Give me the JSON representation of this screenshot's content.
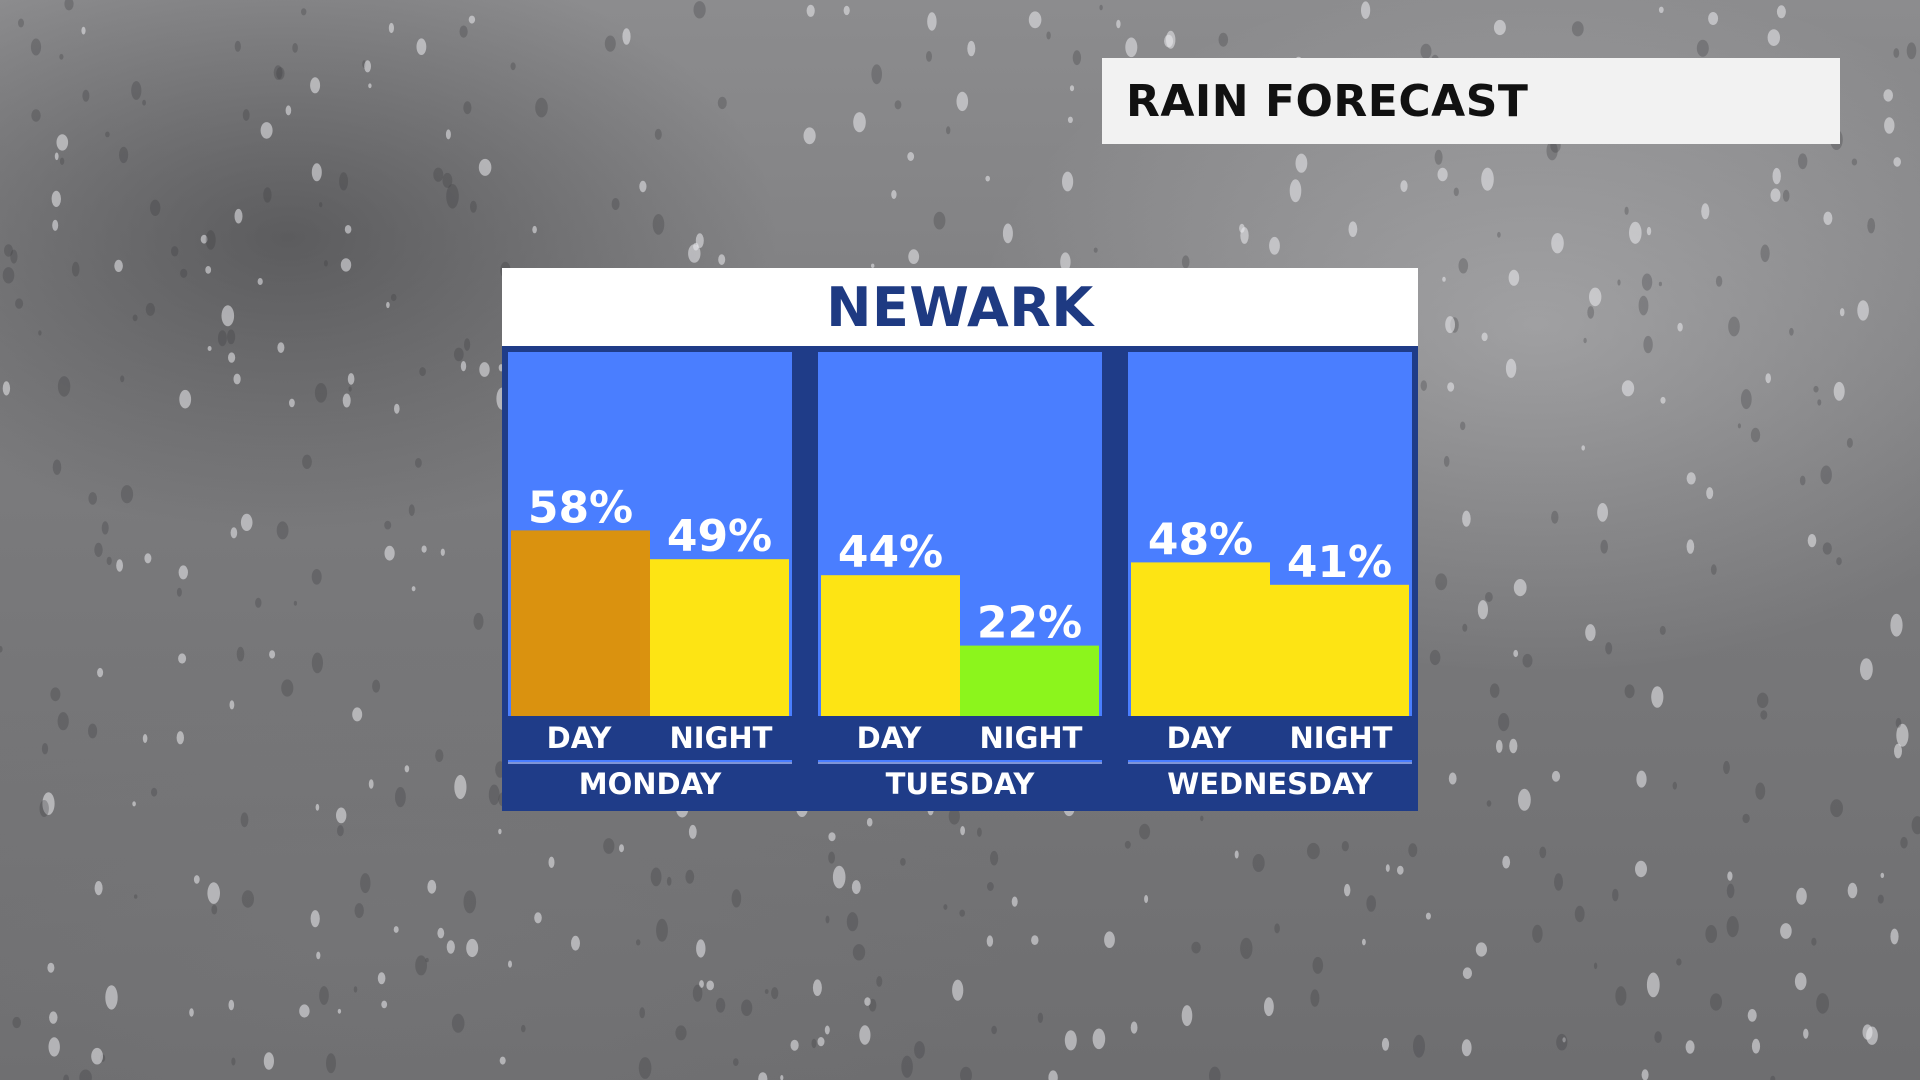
{
  "header": {
    "title": "RAIN FORECAST"
  },
  "chart_data": {
    "type": "bar",
    "title": "NEWARK",
    "ylim": [
      0,
      100
    ],
    "groups": [
      {
        "day": "MONDAY",
        "bars": [
          {
            "label": "DAY",
            "value": 58,
            "value_label": "58%",
            "color": "#da920f"
          },
          {
            "label": "NIGHT",
            "value": 49,
            "value_label": "49%",
            "color": "#fde414"
          }
        ]
      },
      {
        "day": "TUESDAY",
        "bars": [
          {
            "label": "DAY",
            "value": 44,
            "value_label": "44%",
            "color": "#fde414"
          },
          {
            "label": "NIGHT",
            "value": 22,
            "value_label": "22%",
            "color": "#8cf51c"
          }
        ]
      },
      {
        "day": "WEDNESDAY",
        "bars": [
          {
            "label": "DAY",
            "value": 48,
            "value_label": "48%",
            "color": "#fde414"
          },
          {
            "label": "NIGHT",
            "value": 41,
            "value_label": "41%",
            "color": "#fde414"
          }
        ]
      }
    ]
  },
  "colors": {
    "panel_border": "#1f3c88",
    "column_background": "#4a7eff",
    "city_text": "#1e3a82"
  }
}
